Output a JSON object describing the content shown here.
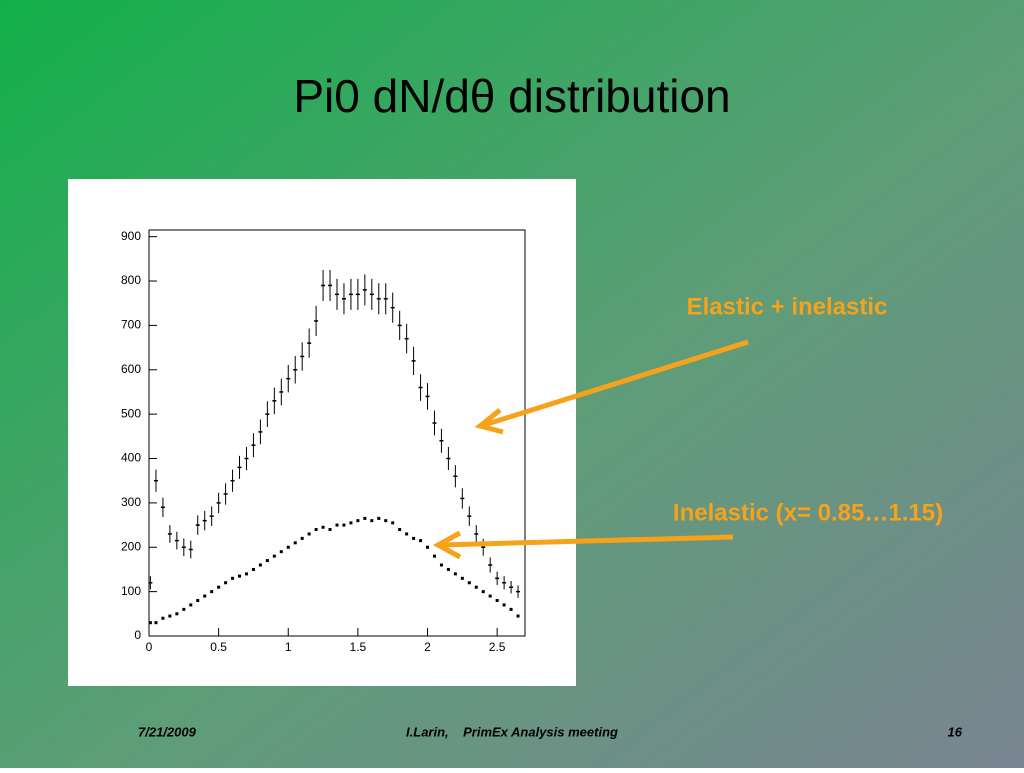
{
  "title": "Pi0 dN/dθ distribution",
  "footer": {
    "date": "7/21/2009",
    "presenter": "I.Larin,    PrimEx Analysis meeting",
    "page": "16"
  },
  "chart_data": {
    "type": "scatter",
    "annotations": [
      "Elastic + inelastic",
      "Inelastic (x= 0.85…1.15)"
    ],
    "x": [
      0.01,
      0.05,
      0.1,
      0.15,
      0.2,
      0.25,
      0.3,
      0.35,
      0.4,
      0.45,
      0.5,
      0.55,
      0.6,
      0.65,
      0.7,
      0.75,
      0.8,
      0.85,
      0.9,
      0.95,
      1.0,
      1.05,
      1.1,
      1.15,
      1.2,
      1.25,
      1.3,
      1.35,
      1.4,
      1.45,
      1.5,
      1.55,
      1.6,
      1.65,
      1.7,
      1.75,
      1.8,
      1.85,
      1.9,
      1.95,
      2.0,
      2.05,
      2.1,
      2.15,
      2.2,
      2.25,
      2.3,
      2.35,
      2.4,
      2.45,
      2.5,
      2.55,
      2.6,
      2.65
    ],
    "series": [
      {
        "color": "#000000",
        "values": [
          120,
          350,
          290,
          230,
          215,
          200,
          195,
          250,
          260,
          270,
          300,
          320,
          350,
          380,
          400,
          430,
          460,
          500,
          530,
          550,
          580,
          600,
          630,
          660,
          710,
          790,
          790,
          770,
          760,
          770,
          770,
          780,
          770,
          760,
          760,
          740,
          700,
          670,
          620,
          560,
          540,
          480,
          440,
          400,
          360,
          310,
          270,
          230,
          200,
          160,
          130,
          120,
          110,
          100
        ],
        "errors": [
          15,
          25,
          22,
          20,
          20,
          20,
          20,
          22,
          22,
          22,
          23,
          24,
          25,
          26,
          26,
          27,
          28,
          29,
          30,
          30,
          31,
          31,
          32,
          33,
          34,
          35,
          35,
          35,
          35,
          35,
          35,
          35,
          35,
          35,
          35,
          34,
          33,
          33,
          32,
          30,
          30,
          28,
          27,
          26,
          25,
          23,
          22,
          20,
          19,
          17,
          15,
          15,
          14,
          14
        ]
      },
      {
        "color": "#000000",
        "values": [
          30,
          30,
          40,
          45,
          50,
          60,
          70,
          80,
          90,
          100,
          110,
          120,
          130,
          135,
          140,
          150,
          160,
          170,
          180,
          190,
          200,
          210,
          220,
          230,
          240,
          245,
          240,
          250,
          250,
          255,
          260,
          265,
          260,
          265,
          260,
          255,
          240,
          230,
          220,
          215,
          200,
          180,
          160,
          150,
          140,
          130,
          120,
          110,
          100,
          90,
          80,
          70,
          60,
          45
        ]
      }
    ],
    "xlim": [
      0,
      2.7
    ],
    "ylim": [
      0,
      915
    ],
    "xticks": [
      0,
      0.5,
      1,
      1.5,
      2,
      2.5
    ],
    "yticks": [
      0,
      100,
      200,
      300,
      400,
      500,
      600,
      700,
      800,
      900
    ]
  }
}
